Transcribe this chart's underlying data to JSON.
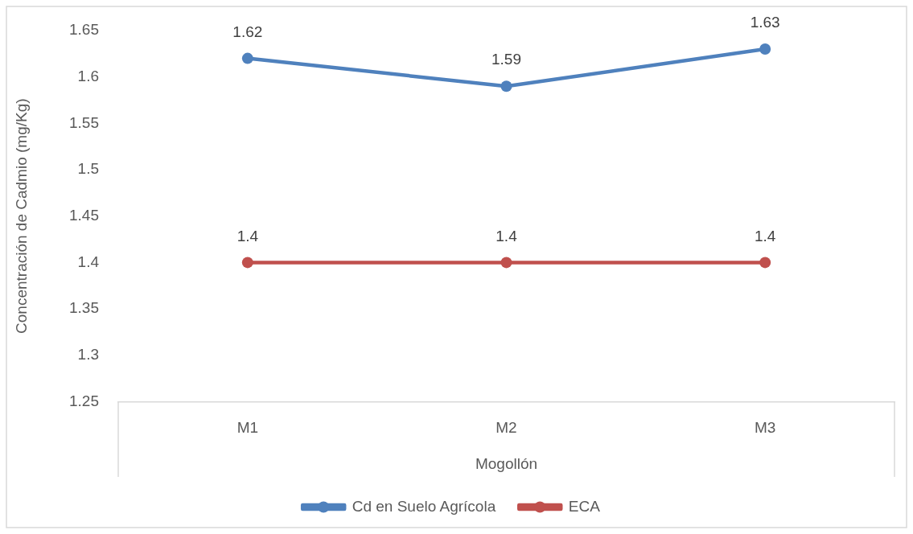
{
  "chart_data": {
    "type": "line",
    "xlabel": "Mogollón",
    "ylabel": "Concentración de Cadmio (mg/Kg)",
    "categories": [
      "M1",
      "M2",
      "M3"
    ],
    "series": [
      {
        "name": "Cd en Suelo Agrícola",
        "color": "#4f81bd",
        "values": [
          1.62,
          1.59,
          1.63
        ]
      },
      {
        "name": "ECA",
        "color": "#c0504d",
        "values": [
          1.4,
          1.4,
          1.4
        ]
      }
    ],
    "ylim": [
      1.25,
      1.65
    ],
    "yticks": [
      1.25,
      1.3,
      1.35,
      1.4,
      1.45,
      1.5,
      1.55,
      1.6,
      1.65
    ],
    "grid": false,
    "legend": "bottom",
    "marker": "circle",
    "line_style": "solid",
    "data_labels": true
  }
}
